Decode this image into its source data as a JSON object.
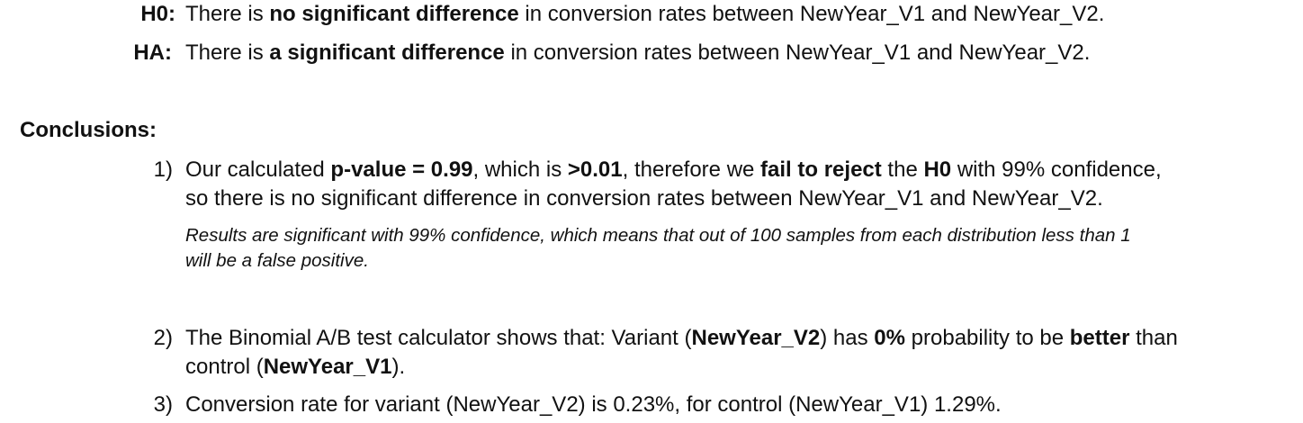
{
  "hypotheses": {
    "h0": {
      "label": "H0:",
      "pre": "There is ",
      "bold": "no significant difference",
      "post": " in conversion rates between NewYear_V1 and NewYear_V2."
    },
    "ha": {
      "label": "HA:",
      "pre": "There is ",
      "bold": "a significant difference",
      "post": " in conversion rates between NewYear_V1 and NewYear_V2."
    }
  },
  "conclusions": {
    "heading": "Conclusions:",
    "item1": {
      "num": "1)",
      "t1": "Our calculated ",
      "b1": "p-value = 0.99",
      "t2": ", which is ",
      "b2": ">0.01",
      "t3": ", therefore we ",
      "b3": "fail to reject",
      "t4": " the ",
      "b4": "H0",
      "t5": " with 99% confidence,",
      "line2": "so there is no significant difference in conversion rates between NewYear_V1 and NewYear_V2.",
      "note1": "Results are significant with 99% confidence, which means that out of 100 samples from each distribution less than 1",
      "note2": "will be a false positive."
    },
    "item2": {
      "num": "2)",
      "t1": "The Binomial A/B test calculator shows that: Variant (",
      "b1": "NewYear_V2",
      "t2": ") has ",
      "b2": "0%",
      "t3": " probability to be ",
      "b3": "better",
      "t4": " than",
      "l2t1": "control (",
      "l2b1": "NewYear_V1",
      "l2t2": ")."
    },
    "item3": {
      "num": "3)",
      "text": "Conversion rate for variant (NewYear_V2) is 0.23%, for control (NewYear_V1) 1.29%."
    }
  }
}
